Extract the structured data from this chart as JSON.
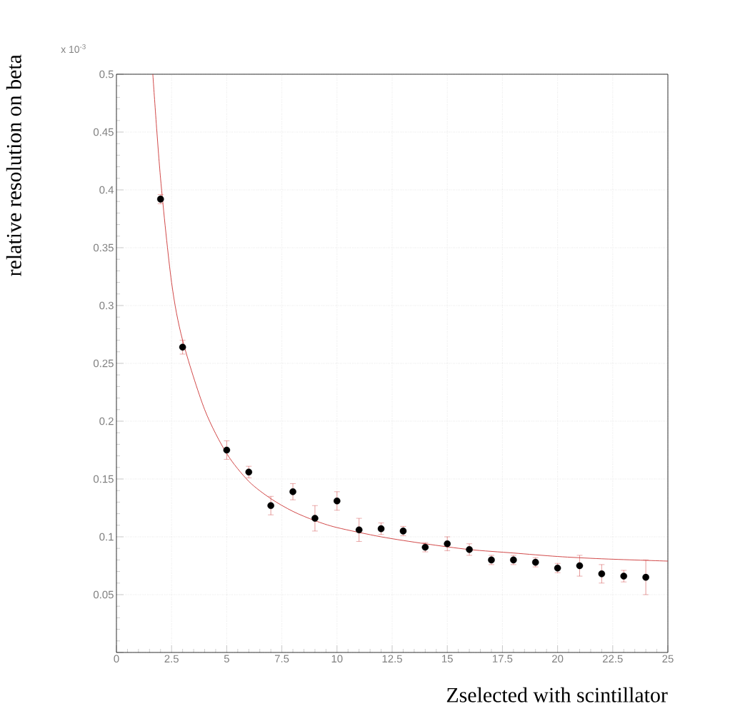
{
  "chart_data": {
    "type": "scatter",
    "xlabel": "Zselected with scintillator",
    "ylabel": "relative resolution on beta",
    "annotations": [
      "x 10$^{-3}$"
    ],
    "xlim": [
      0,
      25
    ],
    "ylim": [
      0,
      0.5
    ],
    "xticks": [
      0,
      2.5,
      5,
      7.5,
      10,
      12.5,
      15,
      17.5,
      20,
      22.5,
      25
    ],
    "yticks": [
      {
        "value": 0,
        "label": null
      },
      0.05,
      0.1,
      0.15,
      0.2,
      0.25,
      0.3,
      0.35,
      0.4,
      0.45,
      0.5
    ],
    "grid": true,
    "series": [
      {
        "color": "#000000",
        "marker": "circle",
        "x": [
          2,
          3,
          5,
          6,
          7,
          8,
          9,
          10,
          11,
          12,
          13,
          14,
          15,
          16,
          17,
          18,
          19,
          20,
          21,
          22,
          23,
          24
        ],
        "values": [
          0.392,
          0.264,
          0.175,
          0.156,
          0.127,
          0.139,
          0.116,
          0.131,
          0.106,
          0.107,
          0.105,
          0.091,
          0.094,
          0.089,
          0.08,
          0.08,
          0.078,
          0.073,
          0.075,
          0.068,
          0.066,
          0.065
        ],
        "errors": [
          0.004,
          0.006,
          0.008,
          0.005,
          0.008,
          0.007,
          0.011,
          0.008,
          0.01,
          0.005,
          0.004,
          0.004,
          0.006,
          0.005,
          0.004,
          0.004,
          0.004,
          0.004,
          0.009,
          0.008,
          0.005,
          0.015
        ]
      },
      {
        "type": "line",
        "color": "#cc3333",
        "line_style": "solid",
        "x": [
          1.65,
          2,
          2.5,
          3,
          4,
          5,
          6,
          7,
          8,
          9,
          10,
          12,
          14,
          16,
          18,
          20,
          22,
          25
        ],
        "values": [
          0.5,
          0.41,
          0.32,
          0.27,
          0.21,
          0.172,
          0.148,
          0.133,
          0.122,
          0.114,
          0.108,
          0.1,
          0.094,
          0.089,
          0.086,
          0.083,
          0.081,
          0.079
        ]
      }
    ]
  }
}
